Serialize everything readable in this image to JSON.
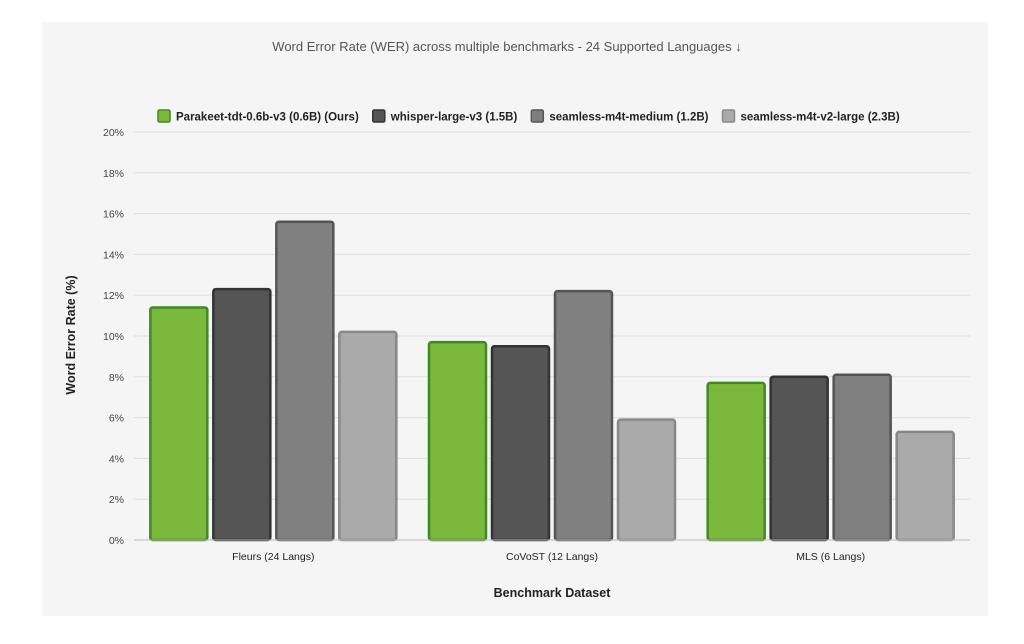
{
  "chart_data": {
    "type": "bar",
    "title": "Word Error Rate (WER) across multiple benchmarks - 24 Supported Languages ↓",
    "xlabel": "Benchmark Dataset",
    "ylabel": "Word Error Rate (%)",
    "ylim": [
      0,
      20
    ],
    "y_tick_step": 2,
    "y_tick_suffix": "%",
    "grid": true,
    "legend_position": "top",
    "categories": [
      "Fleurs (24 Langs)",
      "CoVoST (12 Langs)",
      "MLS (6 Langs)"
    ],
    "series": [
      {
        "name": "Parakeet-tdt-0.6b-v3 (0.6B) (Ours)",
        "values": [
          11.4,
          9.7,
          7.7
        ],
        "color": "#7cb83c",
        "border": "#3f8a25"
      },
      {
        "name": "whisper-large-v3 (1.5B)",
        "values": [
          12.3,
          9.5,
          8.0
        ],
        "color": "#555555",
        "border": "#333333"
      },
      {
        "name": "seamless-m4t-medium (1.2B)",
        "values": [
          15.6,
          12.2,
          8.1
        ],
        "color": "#808080",
        "border": "#555555"
      },
      {
        "name": "seamless-m4t-v2-large (2.3B)",
        "values": [
          10.2,
          5.9,
          5.3
        ],
        "color": "#aaaaaa",
        "border": "#888888"
      }
    ]
  }
}
